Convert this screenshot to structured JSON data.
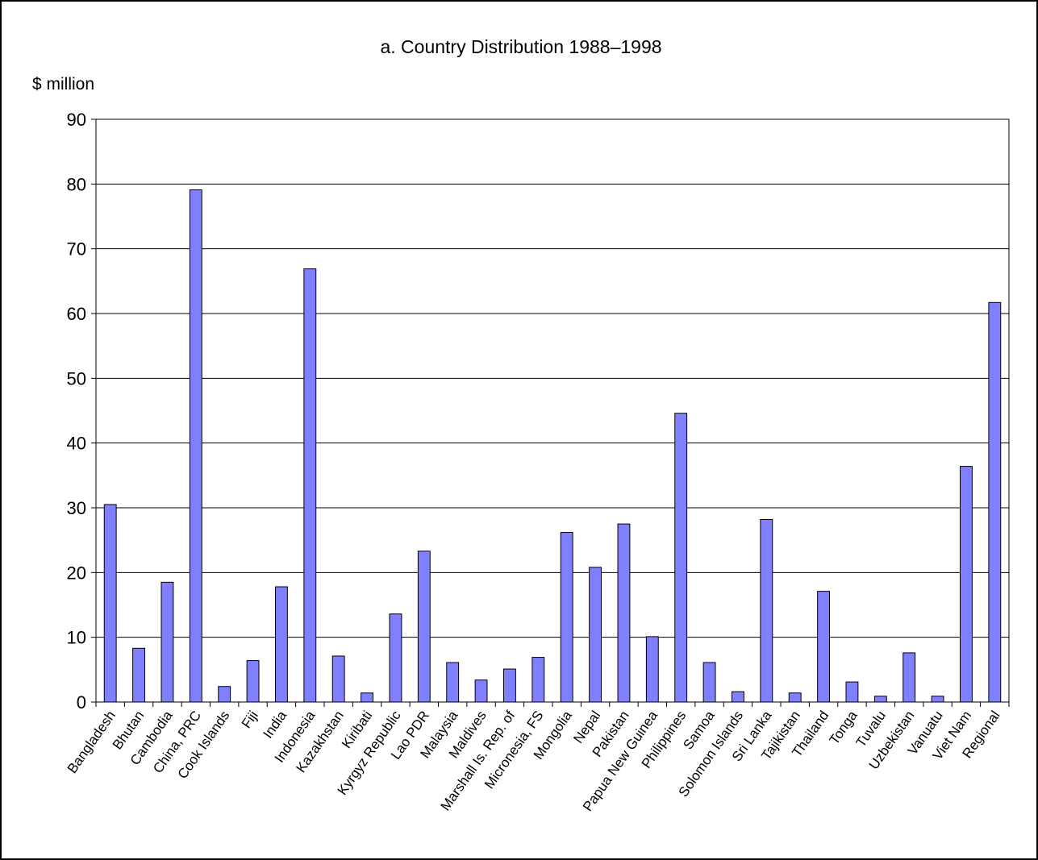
{
  "chart_data": {
    "type": "bar",
    "title": "a.  Country Distribution 1988–1998",
    "ylabel": "$ million",
    "xlabel": "",
    "ylim": [
      0,
      90
    ],
    "yticks": [
      "0",
      "10",
      "20",
      "30",
      "40",
      "50",
      "60",
      "70",
      "80",
      "90"
    ],
    "grid": true,
    "legend": "none",
    "bar_color": "#8080ff",
    "categories": [
      "Bangladesh",
      "Bhutan",
      "Cambodia",
      "China, PRC",
      "Cook Islands",
      "Fiji",
      "India",
      "Indonesia",
      "Kazakhstan",
      "Kiribati",
      "Kyrgyz Republic",
      "Lao PDR",
      "Malaysia",
      "Maldives",
      "Marshall Is. Rep. of",
      "Micronesia, FS",
      "Mongolia",
      "Nepal",
      "Pakistan",
      "Papua New Guinea",
      "Philippines",
      "Samoa",
      "Solomon Islands",
      "Sri Lanka",
      "Tajikistan",
      "Thailand",
      "Tonga",
      "Tuvalu",
      "Uzbekistan",
      "Vanuatu",
      "Viet Nam",
      "Regional"
    ],
    "values": [
      30.5,
      8.3,
      18.5,
      79.1,
      2.4,
      6.4,
      17.8,
      66.9,
      7.1,
      1.4,
      13.6,
      23.3,
      6.1,
      3.4,
      5.1,
      6.9,
      26.2,
      20.8,
      27.5,
      10.1,
      44.6,
      6.1,
      1.6,
      28.2,
      1.4,
      17.1,
      3.1,
      0.9,
      7.6,
      0.9,
      36.4,
      61.7
    ]
  }
}
